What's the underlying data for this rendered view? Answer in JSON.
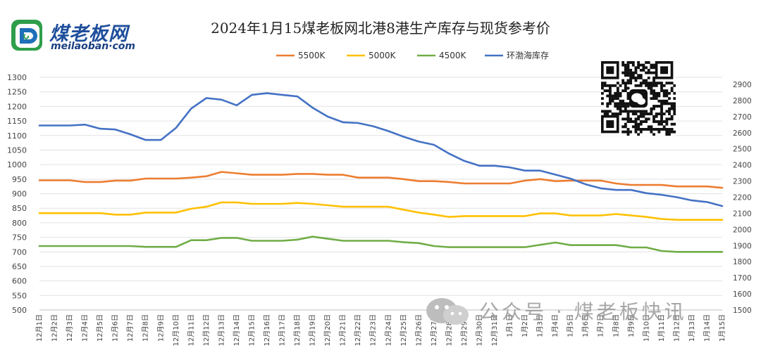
{
  "header": {
    "title": "2024年1月15煤老板网北港8港生产库存与现货参考价",
    "logo_main": "煤老板网",
    "logo_sub": "meilaoban·com"
  },
  "watermark": {
    "text": "公众号 · 煤老板快讯"
  },
  "chart_data": {
    "type": "line",
    "title": "2024年1月15煤老板网北港8港生产库存与现货参考价",
    "categories": [
      "12月1日",
      "12月2日",
      "12月3日",
      "12月4日",
      "12月5日",
      "12月6日",
      "12月7日",
      "12月8日",
      "12月9日",
      "12月10日",
      "12月11日",
      "12月12日",
      "12月13日",
      "12月14日",
      "12月15日",
      "12月16日",
      "12月17日",
      "12月18日",
      "12月19日",
      "12月20日",
      "12月21日",
      "12月22日",
      "12月23日",
      "12月24日",
      "12月25日",
      "12月26日",
      "12月27日",
      "12月28日",
      "12月29日",
      "12月30日",
      "12月31日",
      "1月1日",
      "1月2日",
      "1月3日",
      "1月4日",
      "1月5日",
      "1月6日",
      "1月7日",
      "1月8日",
      "1月9日",
      "1月10日",
      "1月11日",
      "1月12日",
      "1月13日",
      "1月14日",
      "1月15日"
    ],
    "series": [
      {
        "name": "5500K",
        "axis": "left",
        "color": "#ED7D31",
        "values": [
          946,
          946,
          946,
          940,
          940,
          945,
          945,
          952,
          952,
          952,
          955,
          960,
          975,
          970,
          965,
          965,
          965,
          968,
          968,
          965,
          965,
          955,
          955,
          955,
          950,
          943,
          943,
          940,
          935,
          935,
          935,
          935,
          945,
          950,
          943,
          945,
          945,
          945,
          935,
          930,
          930,
          930,
          925,
          925,
          925,
          920
        ]
      },
      {
        "name": "5000K",
        "axis": "left",
        "color": "#FFC000",
        "values": [
          833,
          833,
          833,
          833,
          833,
          828,
          828,
          835,
          835,
          835,
          848,
          855,
          870,
          870,
          865,
          865,
          865,
          868,
          865,
          860,
          855,
          855,
          855,
          855,
          845,
          835,
          828,
          820,
          823,
          823,
          823,
          823,
          823,
          832,
          832,
          825,
          825,
          825,
          830,
          825,
          820,
          813,
          810,
          810,
          810,
          810
        ]
      },
      {
        "name": "4500K",
        "axis": "left",
        "color": "#70AD47",
        "values": [
          720,
          720,
          720,
          720,
          720,
          720,
          720,
          717,
          717,
          717,
          740,
          740,
          748,
          748,
          738,
          738,
          738,
          742,
          752,
          745,
          738,
          738,
          738,
          738,
          733,
          730,
          720,
          716,
          716,
          716,
          716,
          716,
          716,
          724,
          732,
          723,
          723,
          723,
          723,
          715,
          715,
          703,
          700,
          700,
          700,
          700
        ]
      },
      {
        "name": "环渤海库存",
        "axis": "right",
        "color": "#4472C4",
        "values": [
          2645,
          2645,
          2645,
          2650,
          2625,
          2620,
          2590,
          2555,
          2555,
          2630,
          2750,
          2815,
          2805,
          2770,
          2835,
          2845,
          2835,
          2825,
          2755,
          2700,
          2665,
          2660,
          2640,
          2610,
          2575,
          2545,
          2525,
          2470,
          2425,
          2395,
          2395,
          2385,
          2365,
          2365,
          2340,
          2315,
          2280,
          2255,
          2245,
          2245,
          2225,
          2215,
          2200,
          2180,
          2170,
          2145
        ]
      }
    ],
    "y_left": {
      "min": 500,
      "max": 1300,
      "step": 50,
      "ticks": [
        "500",
        "550",
        "600",
        "650",
        "700",
        "750",
        "800",
        "850",
        "900",
        "950",
        "1000",
        "1050",
        "1100",
        "1150",
        "1200",
        "1250",
        "1300"
      ]
    },
    "y_right": {
      "min": 1500,
      "max": 2900,
      "step": 100,
      "ticks": [
        "1500",
        "1600",
        "1700",
        "1800",
        "1900",
        "2000",
        "2100",
        "2200",
        "2300",
        "2400",
        "2500",
        "2600",
        "2700",
        "2800",
        "2900"
      ]
    },
    "legend_position": "top-center",
    "grid": true
  }
}
